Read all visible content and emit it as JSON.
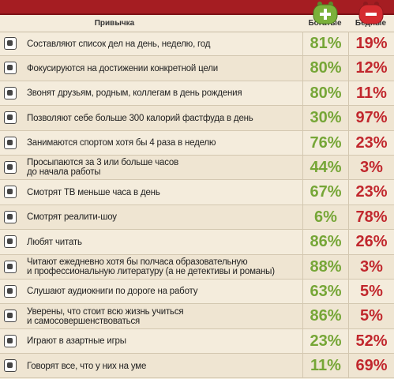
{
  "header": {
    "habit": "Привычка",
    "rich": "Богатые",
    "poor": "Бедные"
  },
  "rows": [
    {
      "lines": [
        "Составляют список дел на день, неделю, год"
      ],
      "rich": "81%",
      "poor": "19%"
    },
    {
      "lines": [
        "Фокусируются на достижении конкретной цели"
      ],
      "rich": "80%",
      "poor": "12%"
    },
    {
      "lines": [
        "Звонят друзьям, родным, коллегам в день рождения"
      ],
      "rich": "80%",
      "poor": "11%"
    },
    {
      "lines": [
        "Позволяют себе больше 300 калорий фастфуда в день"
      ],
      "rich": "30%",
      "poor": "97%"
    },
    {
      "lines": [
        "Занимаются спортом хотя бы 4 раза в неделю"
      ],
      "rich": "76%",
      "poor": "23%"
    },
    {
      "lines": [
        "Просыпаются за 3 или больше часов",
        "до начала работы"
      ],
      "rich": "44%",
      "poor": "3%"
    },
    {
      "lines": [
        "Смотрят ТВ меньше часа в день"
      ],
      "rich": "67%",
      "poor": "23%"
    },
    {
      "lines": [
        "Смотрят реалити-шоу"
      ],
      "rich": "6%",
      "poor": "78%"
    },
    {
      "lines": [
        "Любят читать"
      ],
      "rich": "86%",
      "poor": "26%"
    },
    {
      "lines": [
        "Читают ежедневно хотя бы полчаса образовательную",
        "и профессиональную литературу (а не детективы и романы)"
      ],
      "rich": "88%",
      "poor": "3%"
    },
    {
      "lines": [
        "Слушают аудиокниги по дороге на работу"
      ],
      "rich": "63%",
      "poor": "5%"
    },
    {
      "lines": [
        "Уверены, что стоит всю жизнь учиться",
        "и самосовершенствоваться"
      ],
      "rich": "86%",
      "poor": "5%"
    },
    {
      "lines": [
        "Играют в азартные игры"
      ],
      "rich": "23%",
      "poor": "52%"
    },
    {
      "lines": [
        "Говорят все, что у них на уме"
      ],
      "rich": "11%",
      "poor": "69%"
    }
  ]
}
